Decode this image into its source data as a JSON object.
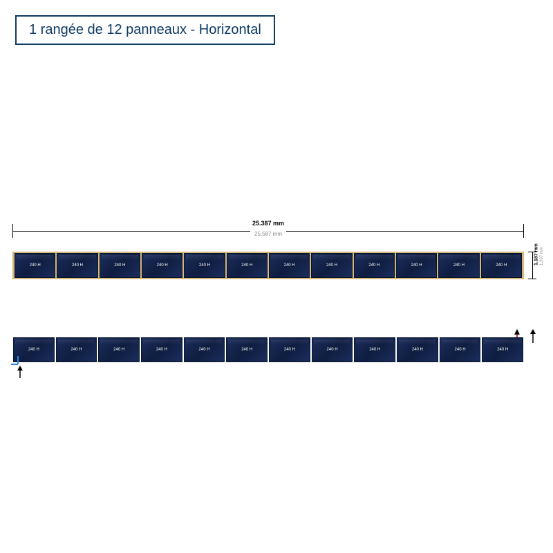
{
  "title": {
    "text": "1 rangée de 12 panneaux - Horizontal",
    "border_color": "#0e3a63",
    "text_color": "#0e3a63",
    "fontsize": 20
  },
  "diagram": {
    "panel_count": 12,
    "panel_label": "240 H",
    "width_dim_main": "25.387 mm",
    "width_dim_sub": "25.587 mm",
    "height_dim_main": "1.187 mm",
    "height_dim_sub": "1.207 mm",
    "frame_color": "#d6b97a",
    "panel_fill_top": "#1a2d5c",
    "panel_fill_bot": "#0f1d40",
    "panel_border": "#0a1430",
    "panel_text_color": "#ffffff",
    "conn_out_color": "#c0392b",
    "conn_in_color": "#2e86de",
    "arrow_color": "#000000",
    "background_color": "#ffffff"
  }
}
